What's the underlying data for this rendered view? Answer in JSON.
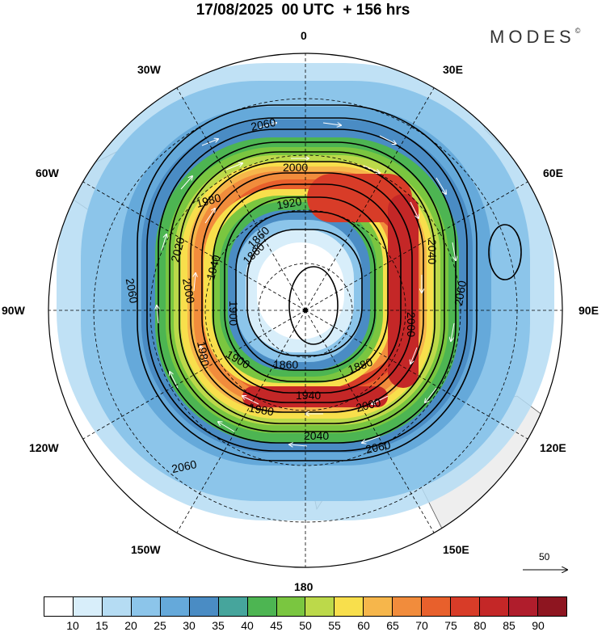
{
  "title": "17/08/2025  00 UTC  + 156 hrs",
  "brand": "MODES",
  "brand_mark": "©",
  "longitude_labels": {
    "lon0": "0",
    "lon30e": "30E",
    "lon60e": "60E",
    "lon90e": "90E",
    "lon120e": "120E",
    "lon150e": "150E",
    "lon180": "180",
    "lon150w": "150W",
    "lon120w": "120W",
    "lon90w": "90W",
    "lon60w": "60W",
    "lon30w": "30W"
  },
  "contour_labels": [
    "2060",
    "2000",
    "1980",
    "1920",
    "1880",
    "1940",
    "2020",
    "2000",
    "1900",
    "2060",
    "1980",
    "1900",
    "1860",
    "1880",
    "1940",
    "2000",
    "1980",
    "2040",
    "2060",
    "2060",
    "2040",
    "1860",
    "2000",
    "2060"
  ],
  "colorbar": {
    "colors": [
      "#ffffff",
      "#d8eefa",
      "#b5dcf3",
      "#8cc5ea",
      "#65a9da",
      "#4a8cc4",
      "#46a59c",
      "#4db552",
      "#7ac640",
      "#bcd94a",
      "#f8df4c",
      "#f6b64b",
      "#f18c3c",
      "#e8602c",
      "#d83c28",
      "#c42727",
      "#b01d2c",
      "#8e1520"
    ],
    "labels": [
      "10",
      "15",
      "20",
      "25",
      "30",
      "35",
      "40",
      "45",
      "50",
      "55",
      "60",
      "65",
      "70",
      "75",
      "80",
      "85",
      "90"
    ]
  },
  "reference_vector": {
    "value": "50"
  }
}
